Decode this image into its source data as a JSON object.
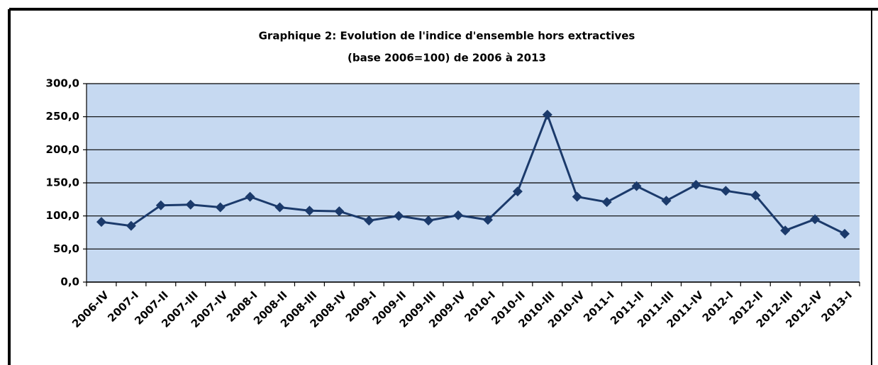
{
  "chart_data": {
    "type": "line",
    "title": "Graphique 2: Evolution de l'indice d'ensemble hors extractives",
    "subtitle": "(base 2006=100) de 2006 à 2013",
    "categories": [
      "2006-IV",
      "2007-I",
      "2007-II",
      "2007-III",
      "2007-IV",
      "2008-I",
      "2008-II",
      "2008-III",
      "2008-IV",
      "2009-I",
      "2009-II",
      "2009-III",
      "2009-IV",
      "2010-I",
      "2010-II",
      "2010-III",
      "2010-IV",
      "2011-I",
      "2011-II",
      "2011-III",
      "2011-IV",
      "2012-I",
      "2012-II",
      "2012-III",
      "2012-IV",
      "2013-I"
    ],
    "values": [
      91,
      85,
      116,
      117,
      113,
      129,
      113,
      108,
      107,
      93,
      100,
      93,
      101,
      94,
      137,
      253,
      129,
      121,
      145,
      123,
      147,
      138,
      131,
      78,
      95,
      73
    ],
    "color": "#1b3a6b",
    "ylim": [
      0,
      300
    ],
    "yticks": [
      {
        "value": 0,
        "label": "0,0"
      },
      {
        "value": 50,
        "label": "50,0"
      },
      {
        "value": 100,
        "label": "100,0"
      },
      {
        "value": 150,
        "label": "150,0"
      },
      {
        "value": 200,
        "label": "200,0"
      },
      {
        "value": 250,
        "label": "250,0"
      },
      {
        "value": 300,
        "label": "300,0"
      }
    ],
    "grid": true
  }
}
